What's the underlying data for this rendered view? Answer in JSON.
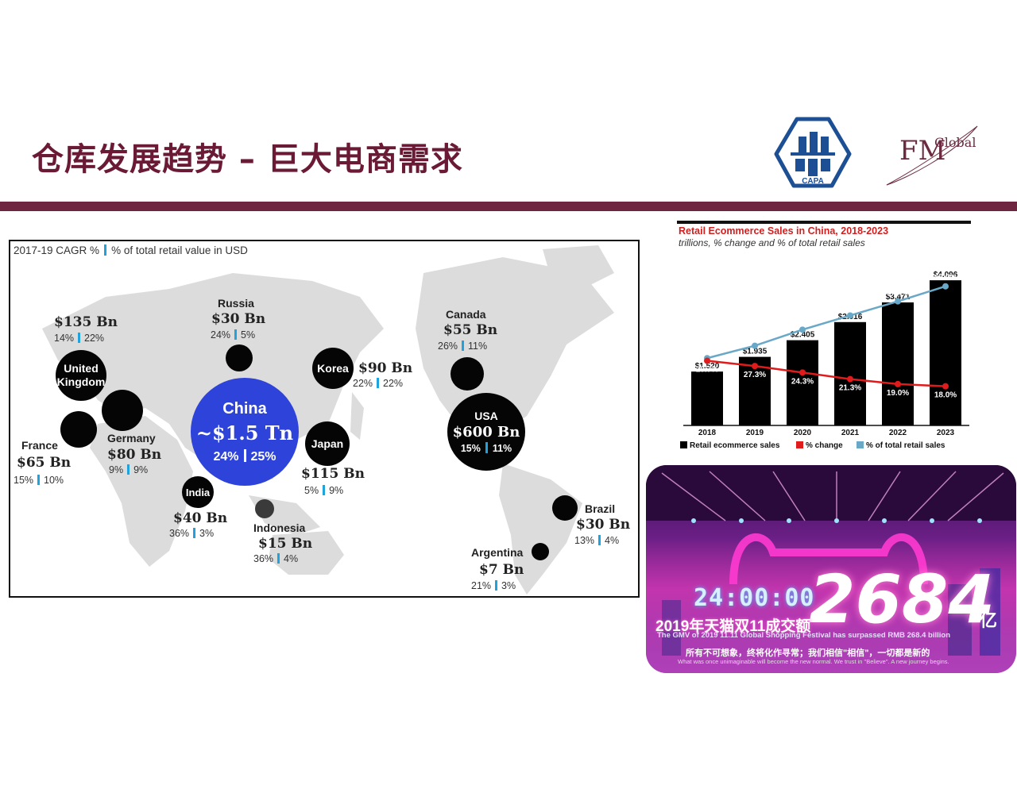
{
  "slide": {
    "title": "仓库发展趋势 – 巨大电商需求",
    "logos": {
      "left": "CAPA",
      "right_main": "FM",
      "right_sub": "Global"
    }
  },
  "map": {
    "legend": {
      "cagr": "2017-19 CAGR %",
      "share": "% of total retail value in USD"
    },
    "countries": [
      {
        "id": "uk",
        "name": "United Kingdom",
        "value": "$135 Bn",
        "cagr": "14%",
        "share": "22%"
      },
      {
        "id": "france",
        "name": "France",
        "value": "$65 Bn",
        "cagr": "15%",
        "share": "10%"
      },
      {
        "id": "germany",
        "name": "Germany",
        "value": "$80 Bn",
        "cagr": "9%",
        "share": "9%"
      },
      {
        "id": "russia",
        "name": "Russia",
        "value": "$30 Bn",
        "cagr": "24%",
        "share": "5%"
      },
      {
        "id": "china",
        "name": "China",
        "value": "~$1.5 Tn",
        "cagr": "24%",
        "share": "25%"
      },
      {
        "id": "korea",
        "name": "Korea",
        "value": "$90 Bn",
        "cagr": "22%",
        "share": "22%"
      },
      {
        "id": "japan",
        "name": "Japan",
        "value": "$115 Bn",
        "cagr": "5%",
        "share": "9%"
      },
      {
        "id": "india",
        "name": "India",
        "value": "$40 Bn",
        "cagr": "36%",
        "share": "3%"
      },
      {
        "id": "indonesia",
        "name": "Indonesia",
        "value": "$15 Bn",
        "cagr": "36%",
        "share": "4%"
      },
      {
        "id": "canada",
        "name": "Canada",
        "value": "$55 Bn",
        "cagr": "26%",
        "share": "11%"
      },
      {
        "id": "usa",
        "name": "USA",
        "value": "$600 Bn",
        "cagr": "15%",
        "share": "11%"
      },
      {
        "id": "brazil",
        "name": "Brazil",
        "value": "$30 Bn",
        "cagr": "13%",
        "share": "4%"
      },
      {
        "id": "argentina",
        "name": "Argentina",
        "value": "$7 Bn",
        "cagr": "21%",
        "share": "3%"
      }
    ]
  },
  "chart_data": {
    "type": "bar",
    "title": "Retail Ecommerce Sales in China, 2018-2023",
    "subtitle": "trillions, % change and % of total retail sales",
    "categories": [
      "2018",
      "2019",
      "2020",
      "2021",
      "2022",
      "2023"
    ],
    "series": [
      {
        "name": "Retail ecommerce sales",
        "values": [
          1.52,
          1.935,
          2.405,
          2.916,
          3.471,
          4.096
        ],
        "labels": [
          "$1.520",
          "$1.935",
          "$2.405",
          "$2.916",
          "$3.471",
          "$4.096"
        ],
        "color": "#000000"
      },
      {
        "name": "% change",
        "values": [
          29.7,
          27.3,
          24.3,
          21.3,
          19.0,
          18.0
        ],
        "labels": [
          "29.7%",
          "27.3%",
          "24.3%",
          "21.3%",
          "19.0%",
          "18.0%"
        ],
        "color": "#e01b1b"
      },
      {
        "name": "% of total retail sales",
        "values": [
          30.9,
          36.6,
          44.0,
          50.5,
          57.0,
          63.9
        ],
        "labels": [
          "30.9%",
          "36.6%",
          "44.0%",
          "50.5%",
          "57.0%",
          "63.9%"
        ],
        "color": "#6aa8c8"
      }
    ],
    "ylim": [
      0,
      4.3
    ],
    "pct_lim": [
      0,
      70
    ],
    "legend_position": "bottom",
    "grid": false
  },
  "photo": {
    "clock": "24:00:00",
    "big_number": "2684",
    "unit": "亿",
    "gmv_cn": "2019年天猫双11成交额",
    "gmv_en": "The GMV of 2019 11.11 Global Shopping Festival has surpassed RMB 268.4 billion",
    "slogan_cn": "所有不可想象，终将化作寻常；我们相信\"相信\"，一切都是新的",
    "slogan_en": "What was once unimaginable will become the new normal. We trust in \"Believe\". A new journey begins."
  }
}
